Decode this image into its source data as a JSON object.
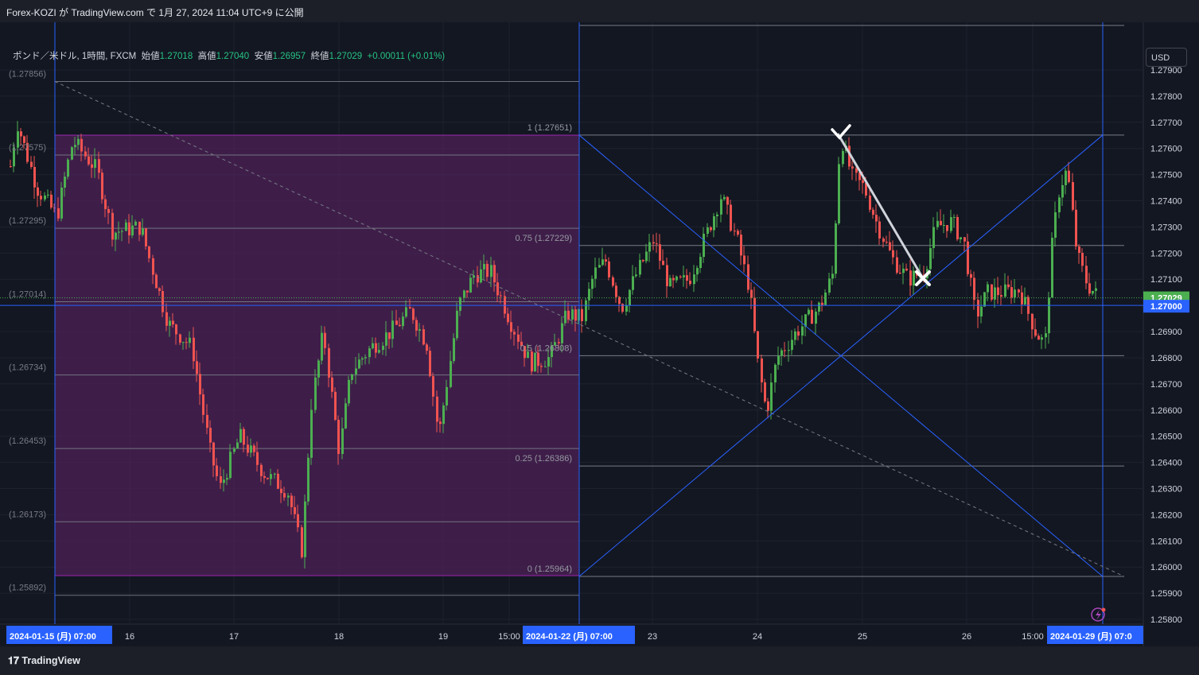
{
  "header": {
    "published_text": "Forex-KOZI が TradingView.com で 1月 27, 2024 11:04 UTC+9 に公開"
  },
  "symbol": {
    "name": "ポンド／米ドル, 1時間, FXCM",
    "open_label": "始値",
    "open": "1.27018",
    "high_label": "高値",
    "high": "1.27040",
    "low_label": "安値",
    "low": "1.26957",
    "close_label": "終値",
    "close": "1.27029",
    "change": "+0.00011 (+0.01%)"
  },
  "currency_button": "USD",
  "price_axis": {
    "ticks": [
      "1.27900",
      "1.27800",
      "1.27700",
      "1.27600",
      "1.27500",
      "1.27400",
      "1.27300",
      "1.27200",
      "1.27100",
      "1.26900",
      "1.26800",
      "1.26700",
      "1.26600",
      "1.26500",
      "1.26400",
      "1.26300",
      "1.26200",
      "1.26100",
      "1.26000",
      "1.25900",
      "1.25800"
    ],
    "current_price": "1.27029",
    "line_price": "1.27000"
  },
  "time_axis": {
    "labels": [
      "16",
      "17",
      "18",
      "19",
      "15:00",
      "23",
      "24",
      "25",
      "26",
      "15:00"
    ],
    "highlights": [
      "2024-01-15 (月)   07:00",
      "2024-01-22 (月)   07:00",
      "2024-01-29 (月)   07:0"
    ]
  },
  "left_fib_labels": [
    "(1.27856)",
    "(1.27575)",
    "(1.27295)",
    "(1.27014)",
    "(1.26734)",
    "(1.26453)",
    "(1.26173)",
    "(1.25892)"
  ],
  "right_fib_labels": [
    "1 (1.27651)",
    "0.75 (1.27229)",
    "0.5 (1.26808)",
    "0.25 (1.26386)",
    "0 (1.25964)"
  ],
  "footer": {
    "brand": "TradingView"
  },
  "colors": {
    "up": "#4caf50",
    "down": "#f05350",
    "accent": "#2962ff",
    "box": "#4a2154"
  },
  "chart_data": {
    "type": "candlestick",
    "title": "ポンド／米ドル, 1時間, FXCM",
    "ylim": [
      1.2575,
      1.2795
    ],
    "x_range_days": [
      "2024-01-15",
      "2024-01-29"
    ],
    "ohlc_summary": {
      "open": 1.27018,
      "high": 1.2704,
      "low": 1.26957,
      "close": 1.27029
    },
    "horizontal_line": 1.27,
    "fib_right": [
      {
        "level": 1,
        "price": 1.27651
      },
      {
        "level": 0.75,
        "price": 1.27229
      },
      {
        "level": 0.5,
        "price": 1.26808
      },
      {
        "level": 0.25,
        "price": 1.26386
      },
      {
        "level": 0,
        "price": 1.25964
      }
    ],
    "fib_left_prices": [
      1.27856,
      1.27575,
      1.27295,
      1.27014,
      1.26734,
      1.26453,
      1.26173,
      1.25892
    ],
    "path": [
      [
        0,
        1.2728
      ],
      [
        20,
        1.277
      ],
      [
        45,
        1.2745
      ],
      [
        70,
        1.2734
      ],
      [
        90,
        1.2763
      ],
      [
        120,
        1.2752
      ],
      [
        140,
        1.2728
      ],
      [
        175,
        1.273
      ],
      [
        210,
        1.2693
      ],
      [
        240,
        1.2684
      ],
      [
        262,
        1.2645
      ],
      [
        275,
        1.263
      ],
      [
        300,
        1.265
      ],
      [
        330,
        1.2636
      ],
      [
        360,
        1.2629
      ],
      [
        378,
        1.2606
      ],
      [
        390,
        1.2662
      ],
      [
        405,
        1.269
      ],
      [
        425,
        1.2644
      ],
      [
        440,
        1.2675
      ],
      [
        465,
        1.2684
      ],
      [
        490,
        1.269
      ],
      [
        515,
        1.2698
      ],
      [
        535,
        1.2685
      ],
      [
        550,
        1.265
      ],
      [
        575,
        1.27
      ],
      [
        595,
        1.2712
      ],
      [
        615,
        1.2713
      ],
      [
        640,
        1.2694
      ],
      [
        665,
        1.2678
      ],
      [
        690,
        1.268
      ],
      [
        712,
        1.2697
      ],
      [
        730,
        1.2695
      ],
      [
        745,
        1.2712
      ],
      [
        760,
        1.2717
      ],
      [
        780,
        1.2699
      ],
      [
        800,
        1.2713
      ],
      [
        820,
        1.2725
      ],
      [
        840,
        1.2707
      ],
      [
        865,
        1.271
      ],
      [
        885,
        1.2726
      ],
      [
        905,
        1.2742
      ],
      [
        925,
        1.2725
      ],
      [
        940,
        1.2707
      ],
      [
        952,
        1.2676
      ],
      [
        962,
        1.2659
      ],
      [
        975,
        1.268
      ],
      [
        1000,
        1.269
      ],
      [
        1030,
        1.27
      ],
      [
        1045,
        1.2712
      ],
      [
        1055,
        1.2765
      ],
      [
        1070,
        1.2749
      ],
      [
        1085,
        1.2745
      ],
      [
        1100,
        1.2732
      ],
      [
        1120,
        1.2718
      ],
      [
        1140,
        1.271
      ],
      [
        1160,
        1.2713
      ],
      [
        1175,
        1.273
      ],
      [
        1195,
        1.2732
      ],
      [
        1210,
        1.2724
      ],
      [
        1225,
        1.2696
      ],
      [
        1240,
        1.2705
      ],
      [
        1260,
        1.2705
      ],
      [
        1280,
        1.2706
      ],
      [
        1300,
        1.269
      ],
      [
        1312,
        1.2685
      ],
      [
        1320,
        1.272
      ],
      [
        1330,
        1.2745
      ],
      [
        1340,
        1.2752
      ],
      [
        1352,
        1.272
      ],
      [
        1365,
        1.2708
      ],
      [
        1380,
        1.2703
      ]
    ]
  }
}
